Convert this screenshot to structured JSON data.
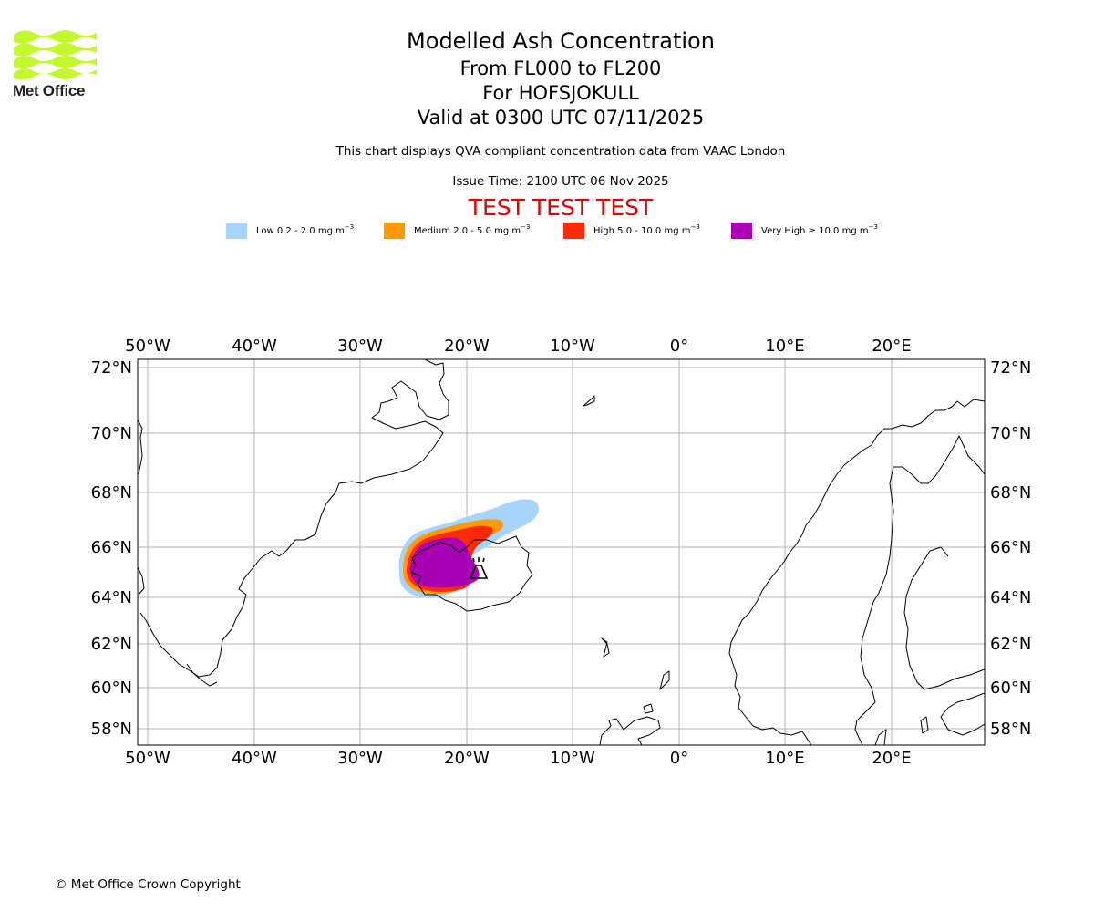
{
  "logo": {
    "name": "Met Office"
  },
  "header": {
    "title": "Modelled Ash Concentration",
    "level_range": "From FL000 to FL200",
    "volcano": "For HOFSJOKULL",
    "valid": "Valid at 0300 UTC 07/11/2025",
    "note": "This chart displays QVA compliant concentration data from VAAC London",
    "issue": "Issue Time: 2100 UTC 06 Nov 2025",
    "test_banner": "TEST TEST TEST"
  },
  "legend": [
    {
      "label": "Low 0.2 - 2.0 mg m",
      "color": "#a6d4fb"
    },
    {
      "label": "Medium 2.0 - 5.0 mg m",
      "color": "#fe9a0a"
    },
    {
      "label": "High 5.0 - 10.0 mg m",
      "color": "#ff2a0a"
    },
    {
      "label": "Very High  ≥  10.0 mg m",
      "color": "#a800b2"
    }
  ],
  "legend_unit_exponent": "−3",
  "map": {
    "lon_labels": [
      "50°W",
      "40°W",
      "30°W",
      "20°W",
      "10°W",
      "0°",
      "10°E",
      "20°E"
    ],
    "lat_labels": [
      "72°N",
      "70°N",
      "68°N",
      "66°N",
      "64°N",
      "62°N",
      "60°N",
      "58°N"
    ],
    "volcano_icon": "volcano-icon"
  },
  "footer": {
    "copyright": "© Met Office Crown Copyright"
  }
}
